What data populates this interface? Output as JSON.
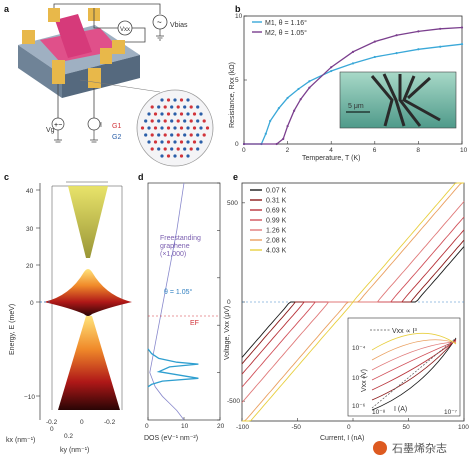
{
  "panels": {
    "a": {
      "letter": "a",
      "labels": {
        "vxx": "Vxx",
        "vbias": "Vbias",
        "vg": "Vg",
        "i": "I",
        "g1": "G1",
        "g2": "G2"
      }
    },
    "b": {
      "letter": "b",
      "legend": [
        "M1, θ = 1.16°",
        "M2, θ = 1.05°"
      ],
      "xlabel": "Temperature, T (K)",
      "ylabel": "Resistance, Rxx (kΩ)",
      "inset_scale": "5 μm"
    },
    "c": {
      "letter": "c",
      "ylabel": "Energy, E (meV)",
      "kx_label": "kx (nm⁻¹)",
      "ky_label": "ky (nm⁻¹)",
      "kx_ticks": [
        "-0.2",
        "0",
        "0.2"
      ],
      "ky_ticks": [
        "0",
        "-0.2"
      ]
    },
    "d": {
      "letter": "d",
      "xlabel": "DOS (eV⁻¹ nm⁻²)",
      "freestanding": "Freestanding\ngraphene\n(×1,000)",
      "theta": "θ = 1.05°",
      "ef": "EF"
    },
    "e": {
      "letter": "e",
      "xlabel": "Current, I (nA)",
      "ylabel": "Voltage, Vxx (μV)",
      "legend": [
        "0.07 K",
        "0.31 K",
        "0.69 K",
        "0.99 K",
        "1.26 K",
        "2.08 K",
        "4.03 K"
      ],
      "inset_formula": "Vxx ∝ I³",
      "inset_xlabel": "I (A)",
      "inset_ylabel": "Vxx (V)"
    }
  },
  "watermark": "石墨烯杂志",
  "chart_data": [
    {
      "id": "b",
      "type": "line",
      "xlabel": "Temperature, T (K)",
      "ylabel": "Resistance, Rxx (kΩ)",
      "xlim": [
        0,
        10
      ],
      "ylim": [
        0,
        10
      ],
      "x_ticks": [
        0,
        2,
        4,
        6,
        8,
        10
      ],
      "y_ticks": [
        0,
        5,
        10
      ],
      "series": [
        {
          "name": "M1, θ = 1.16°",
          "color": "#3aa8d8",
          "x": [
            0,
            0.8,
            1.0,
            1.2,
            1.6,
            2.0,
            2.5,
            3,
            4,
            5,
            6,
            7,
            8,
            9,
            10
          ],
          "y": [
            0,
            0,
            0.8,
            1.8,
            2.8,
            3.6,
            4.3,
            4.9,
            5.7,
            6.3,
            6.8,
            7.1,
            7.4,
            7.6,
            7.8
          ]
        },
        {
          "name": "M2, θ = 1.05°",
          "color": "#7b3f8e",
          "x": [
            0,
            1.5,
            1.8,
            2.0,
            2.3,
            2.6,
            3,
            4,
            5,
            6,
            7,
            8,
            9,
            10
          ],
          "y": [
            0,
            0,
            0.4,
            1.4,
            2.6,
            3.5,
            4.4,
            6.0,
            7.2,
            8.0,
            8.5,
            8.8,
            9.0,
            9.1
          ]
        }
      ]
    },
    {
      "id": "d",
      "type": "line",
      "xlabel": "DOS (eV⁻¹ nm⁻²)",
      "xlim": [
        0,
        20
      ],
      "ylim": [
        -10,
        40
      ],
      "x_ticks": [
        0,
        10,
        20
      ],
      "y_ticks": [
        -10,
        0,
        10,
        20,
        30,
        40
      ],
      "series": [
        {
          "name": "Freestanding graphene (×1,000)",
          "color": "#8888cc",
          "x": [
            10,
            8,
            6,
            4,
            2,
            0.5,
            2,
            4,
            6,
            8,
            10
          ],
          "y": [
            40,
            30,
            22,
            14,
            6,
            0,
            -3,
            -5,
            -6.5,
            -8,
            -10
          ]
        },
        {
          "name": "θ = 1.05°",
          "color": "#2f9fd0",
          "x": [
            0,
            1,
            3,
            8,
            14,
            6,
            3,
            14,
            4,
            1,
            0
          ],
          "y": [
            5,
            4,
            3,
            2.2,
            1.8,
            1.2,
            0.2,
            -1.2,
            -1.8,
            -2.5,
            -3
          ]
        }
      ]
    },
    {
      "id": "e",
      "type": "line",
      "xlabel": "Current, I (nA)",
      "ylabel": "Voltage, Vxx (μV)",
      "xlim": [
        -100,
        100
      ],
      "ylim": [
        -600,
        600
      ],
      "x_ticks": [
        -100,
        -50,
        0,
        50,
        100
      ],
      "y_ticks": [
        -500,
        0,
        500
      ],
      "series": [
        {
          "name": "0.07 K",
          "color": "#1a1a1a",
          "critical_current_nA": 57
        },
        {
          "name": "0.31 K",
          "color": "#8b1a1a",
          "critical_current_nA": 52
        },
        {
          "name": "0.69 K",
          "color": "#b8333a",
          "critical_current_nA": 44
        },
        {
          "name": "0.99 K",
          "color": "#d1515a",
          "critical_current_nA": 34
        },
        {
          "name": "1.26 K",
          "color": "#e07a7a",
          "critical_current_nA": 22
        },
        {
          "name": "2.08 K",
          "color": "#eaa060",
          "critical_current_nA": 5
        },
        {
          "name": "4.03 K",
          "color": "#e8cf40",
          "critical_current_nA": 0
        }
      ]
    }
  ]
}
